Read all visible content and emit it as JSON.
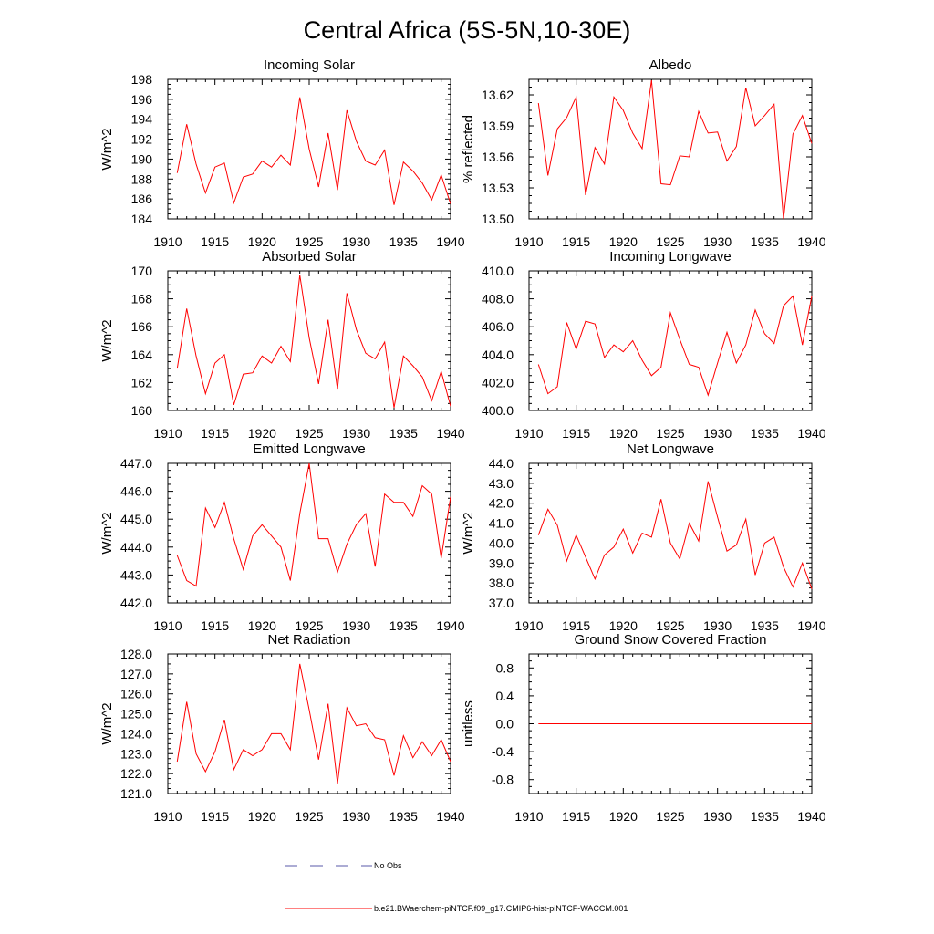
{
  "title": "Central Africa (5S-5N,10-30E)",
  "legend": {
    "obs_label": "No Obs",
    "model_label": "b.e21.BWaerchem-piNTCF.f09_g17.CMIP6-hist-piNTCF-WACCM.001",
    "obs_color": "#5a5aa8",
    "model_color": "#ff0000"
  },
  "chart_data": [
    {
      "type": "line",
      "title": "Incoming Solar",
      "ylabel": "W/m^2",
      "xlim": [
        1910,
        1940
      ],
      "ylim": [
        184,
        198
      ],
      "xticks": [
        "1910",
        "1915",
        "1920",
        "1925",
        "1930",
        "1935",
        "1940"
      ],
      "yticks": [
        "184",
        "186",
        "188",
        "190",
        "192",
        "194",
        "196",
        "198"
      ],
      "x": [
        1911,
        1912,
        1913,
        1914,
        1915,
        1916,
        1917,
        1918,
        1919,
        1920,
        1921,
        1922,
        1923,
        1924,
        1925,
        1926,
        1927,
        1928,
        1929,
        1930,
        1931,
        1932,
        1933,
        1934,
        1935,
        1936,
        1937,
        1938,
        1939,
        1940
      ],
      "series": [
        {
          "color": "#ff0000",
          "values": [
            188.6,
            193.5,
            189.5,
            186.6,
            189.2,
            189.6,
            185.6,
            188.2,
            188.5,
            189.8,
            189.2,
            190.4,
            189.4,
            196.2,
            191.0,
            187.2,
            192.6,
            186.9,
            194.9,
            191.8,
            189.8,
            189.4,
            190.9,
            185.4,
            189.7,
            188.8,
            187.6,
            185.9,
            188.4,
            185.5
          ]
        }
      ]
    },
    {
      "type": "line",
      "title": "Albedo",
      "ylabel": "% reflected",
      "xlim": [
        1910,
        1940
      ],
      "ylim": [
        13.5,
        13.635
      ],
      "xticks": [
        "1910",
        "1915",
        "1920",
        "1925",
        "1930",
        "1935",
        "1940"
      ],
      "yticks": [
        "13.50",
        "13.53",
        "13.56",
        "13.59",
        "13.62"
      ],
      "x": [
        1911,
        1912,
        1913,
        1914,
        1915,
        1916,
        1917,
        1918,
        1919,
        1920,
        1921,
        1922,
        1923,
        1924,
        1925,
        1926,
        1927,
        1928,
        1929,
        1930,
        1931,
        1932,
        1933,
        1934,
        1935,
        1936,
        1937,
        1938,
        1939,
        1940
      ],
      "series": [
        {
          "color": "#ff0000",
          "values": [
            13.612,
            13.542,
            13.587,
            13.598,
            13.618,
            13.523,
            13.569,
            13.553,
            13.618,
            13.605,
            13.583,
            13.568,
            13.634,
            13.534,
            13.533,
            13.561,
            13.56,
            13.604,
            13.583,
            13.584,
            13.556,
            13.57,
            13.627,
            13.59,
            13.6,
            13.611,
            13.5,
            13.582,
            13.6,
            13.573
          ]
        }
      ]
    },
    {
      "type": "line",
      "title": "Absorbed Solar",
      "ylabel": "W/m^2",
      "xlim": [
        1910,
        1940
      ],
      "ylim": [
        160,
        170
      ],
      "xticks": [
        "1910",
        "1915",
        "1920",
        "1925",
        "1930",
        "1935",
        "1940"
      ],
      "yticks": [
        "160",
        "162",
        "164",
        "166",
        "168",
        "170"
      ],
      "x": [
        1911,
        1912,
        1913,
        1914,
        1915,
        1916,
        1917,
        1918,
        1919,
        1920,
        1921,
        1922,
        1923,
        1924,
        1925,
        1926,
        1927,
        1928,
        1929,
        1930,
        1931,
        1932,
        1933,
        1934,
        1935,
        1936,
        1937,
        1938,
        1939,
        1940
      ],
      "series": [
        {
          "color": "#ff0000",
          "values": [
            163.0,
            167.3,
            163.9,
            161.2,
            163.4,
            164.0,
            160.4,
            162.6,
            162.7,
            163.9,
            163.4,
            164.6,
            163.5,
            169.7,
            165.2,
            161.9,
            166.5,
            161.5,
            168.4,
            165.8,
            164.1,
            163.7,
            164.9,
            160.2,
            163.9,
            163.2,
            162.4,
            160.7,
            162.8,
            160.3
          ]
        }
      ]
    },
    {
      "type": "line",
      "title": "Incoming Longwave",
      "ylabel": "",
      "xlim": [
        1910,
        1940
      ],
      "ylim": [
        400,
        410
      ],
      "xticks": [
        "1910",
        "1915",
        "1920",
        "1925",
        "1930",
        "1935",
        "1940"
      ],
      "yticks": [
        "400.0",
        "402.0",
        "404.0",
        "406.0",
        "408.0",
        "410.0"
      ],
      "x": [
        1911,
        1912,
        1913,
        1914,
        1915,
        1916,
        1917,
        1918,
        1919,
        1920,
        1921,
        1922,
        1923,
        1924,
        1925,
        1926,
        1927,
        1928,
        1929,
        1930,
        1931,
        1932,
        1933,
        1934,
        1935,
        1936,
        1937,
        1938,
        1939,
        1940
      ],
      "series": [
        {
          "color": "#ff0000",
          "values": [
            403.3,
            401.2,
            401.7,
            406.3,
            404.4,
            406.4,
            406.2,
            403.8,
            404.7,
            404.2,
            405.0,
            403.6,
            402.5,
            403.1,
            407.0,
            405.1,
            403.3,
            403.1,
            401.1,
            403.4,
            405.6,
            403.4,
            404.7,
            407.2,
            405.5,
            404.8,
            407.5,
            408.2,
            404.7,
            408.2
          ]
        }
      ]
    },
    {
      "type": "line",
      "title": "Emitted Longwave",
      "ylabel": "W/m^2",
      "xlim": [
        1910,
        1940
      ],
      "ylim": [
        442,
        447
      ],
      "xticks": [
        "1910",
        "1915",
        "1920",
        "1925",
        "1930",
        "1935",
        "1940"
      ],
      "yticks": [
        "442.0",
        "443.0",
        "444.0",
        "445.0",
        "446.0",
        "447.0"
      ],
      "x": [
        1911,
        1912,
        1913,
        1914,
        1915,
        1916,
        1917,
        1918,
        1919,
        1920,
        1921,
        1922,
        1923,
        1924,
        1925,
        1926,
        1927,
        1928,
        1929,
        1930,
        1931,
        1932,
        1933,
        1934,
        1935,
        1936,
        1937,
        1938,
        1939,
        1940
      ],
      "series": [
        {
          "color": "#ff0000",
          "values": [
            443.7,
            442.8,
            442.6,
            445.4,
            444.7,
            445.6,
            444.3,
            443.2,
            444.4,
            444.8,
            444.4,
            444.0,
            442.8,
            445.2,
            447.0,
            444.3,
            444.3,
            443.1,
            444.1,
            444.8,
            445.2,
            443.3,
            445.9,
            445.6,
            445.6,
            445.1,
            446.2,
            445.9,
            443.6,
            445.8
          ]
        }
      ]
    },
    {
      "type": "line",
      "title": "Net Longwave",
      "ylabel": "W/m^2",
      "xlim": [
        1910,
        1940
      ],
      "ylim": [
        37,
        44
      ],
      "xticks": [
        "1910",
        "1915",
        "1920",
        "1925",
        "1930",
        "1935",
        "1940"
      ],
      "yticks": [
        "37.0",
        "38.0",
        "39.0",
        "40.0",
        "41.0",
        "42.0",
        "43.0",
        "44.0"
      ],
      "x": [
        1911,
        1912,
        1913,
        1914,
        1915,
        1916,
        1917,
        1918,
        1919,
        1920,
        1921,
        1922,
        1923,
        1924,
        1925,
        1926,
        1927,
        1928,
        1929,
        1930,
        1931,
        1932,
        1933,
        1934,
        1935,
        1936,
        1937,
        1938,
        1939,
        1940
      ],
      "series": [
        {
          "color": "#ff0000",
          "values": [
            40.4,
            41.7,
            40.9,
            39.1,
            40.4,
            39.3,
            38.2,
            39.4,
            39.8,
            40.7,
            39.5,
            40.5,
            40.3,
            42.2,
            40.0,
            39.2,
            41.0,
            40.1,
            43.1,
            41.3,
            39.6,
            39.9,
            41.2,
            38.4,
            40.0,
            40.3,
            38.8,
            37.8,
            39.0,
            37.7
          ]
        }
      ]
    },
    {
      "type": "line",
      "title": "Net Radiation",
      "ylabel": "W/m^2",
      "xlim": [
        1910,
        1940
      ],
      "ylim": [
        121,
        128
      ],
      "xticks": [
        "1910",
        "1915",
        "1920",
        "1925",
        "1930",
        "1935",
        "1940"
      ],
      "yticks": [
        "121.0",
        "122.0",
        "123.0",
        "124.0",
        "125.0",
        "126.0",
        "127.0",
        "128.0"
      ],
      "x": [
        1911,
        1912,
        1913,
        1914,
        1915,
        1916,
        1917,
        1918,
        1919,
        1920,
        1921,
        1922,
        1923,
        1924,
        1925,
        1926,
        1927,
        1928,
        1929,
        1930,
        1931,
        1932,
        1933,
        1934,
        1935,
        1936,
        1937,
        1938,
        1939,
        1940
      ],
      "series": [
        {
          "color": "#ff0000",
          "values": [
            122.6,
            125.6,
            123.0,
            122.1,
            123.1,
            124.7,
            122.2,
            123.2,
            122.9,
            123.2,
            124.0,
            124.0,
            123.2,
            127.5,
            125.2,
            122.7,
            125.5,
            121.5,
            125.3,
            124.4,
            124.5,
            123.8,
            123.7,
            121.9,
            123.9,
            122.8,
            123.6,
            122.9,
            123.7,
            122.6
          ]
        }
      ]
    },
    {
      "type": "line",
      "title": "Ground Snow Covered Fraction",
      "ylabel": "unitless",
      "xlim": [
        1910,
        1940
      ],
      "ylim": [
        -1.0,
        1.0
      ],
      "xticks": [
        "1910",
        "1915",
        "1920",
        "1925",
        "1930",
        "1935",
        "1940"
      ],
      "yticks": [
        "-0.8",
        "-0.4",
        "0.0",
        "0.4",
        "0.8"
      ],
      "x": [
        1911,
        1940
      ],
      "series": [
        {
          "color": "#ff0000",
          "values": [
            0.0,
            0.0
          ]
        }
      ]
    }
  ]
}
